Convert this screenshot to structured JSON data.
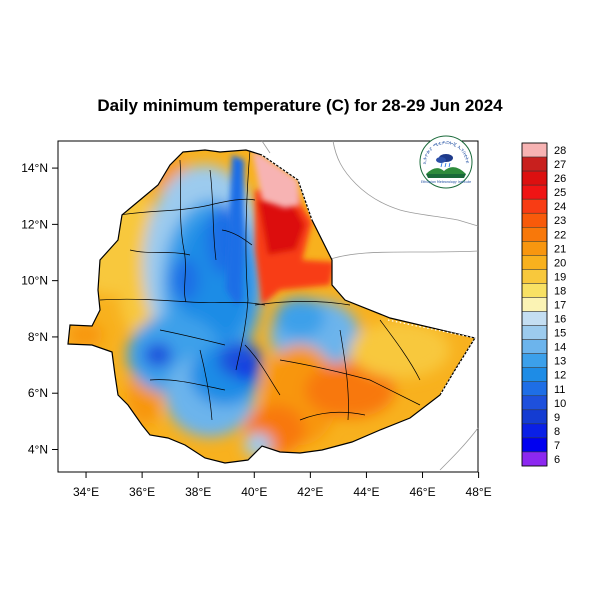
{
  "title": "Daily minimum temperature (C) for 28-29 Jun 2024",
  "x_ticks": [
    {
      "lon": 34,
      "label": "34°E"
    },
    {
      "lon": 36,
      "label": "36°E"
    },
    {
      "lon": 38,
      "label": "38°E"
    },
    {
      "lon": 40,
      "label": "40°E"
    },
    {
      "lon": 42,
      "label": "42°E"
    },
    {
      "lon": 44,
      "label": "44°E"
    },
    {
      "lon": 46,
      "label": "46°E"
    },
    {
      "lon": 48,
      "label": "48°E"
    }
  ],
  "y_ticks": [
    {
      "lat": 4,
      "label": "4°N"
    },
    {
      "lat": 6,
      "label": "6°N"
    },
    {
      "lat": 8,
      "label": "8°N"
    },
    {
      "lat": 10,
      "label": "10°N"
    },
    {
      "lat": 12,
      "label": "12°N"
    },
    {
      "lat": 14,
      "label": "14°N"
    }
  ],
  "colorbar": [
    {
      "label": "28",
      "color": "#f7b3b3"
    },
    {
      "label": "27",
      "color": "#c8201e"
    },
    {
      "label": "26",
      "color": "#dc1010"
    },
    {
      "label": "25",
      "color": "#f01414"
    },
    {
      "label": "24",
      "color": "#f83c14"
    },
    {
      "label": "23",
      "color": "#f85a0a"
    },
    {
      "label": "22",
      "color": "#f8780a"
    },
    {
      "label": "21",
      "color": "#f8960f"
    },
    {
      "label": "20",
      "color": "#f8b11e"
    },
    {
      "label": "19",
      "color": "#f8c83c"
    },
    {
      "label": "18",
      "color": "#f8e164"
    },
    {
      "label": "17",
      "color": "#fbf3b4"
    },
    {
      "label": "16",
      "color": "#c4def2"
    },
    {
      "label": "15",
      "color": "#9ccbee"
    },
    {
      "label": "14",
      "color": "#6cb4ec"
    },
    {
      "label": "13",
      "color": "#3ca0ea"
    },
    {
      "label": "12",
      "color": "#1e8ce6"
    },
    {
      "label": "11",
      "color": "#1e6ee6"
    },
    {
      "label": "10",
      "color": "#1e50dc"
    },
    {
      "label": "9",
      "color": "#143cd2"
    },
    {
      "label": "8",
      "color": "#0a20e6"
    },
    {
      "label": "7",
      "color": "#0000f0"
    },
    {
      "label": "6",
      "color": "#8c28f0"
    }
  ],
  "colors": {
    "outline": "#000000",
    "neighbor_border": "#9a9a9a"
  },
  "logo": {
    "arc_text": "የኢትዮጵያ ሜቲዎሮሎጂ ኢንስቲትዩት",
    "caption": "Ethiopian Meteorology Institute"
  }
}
